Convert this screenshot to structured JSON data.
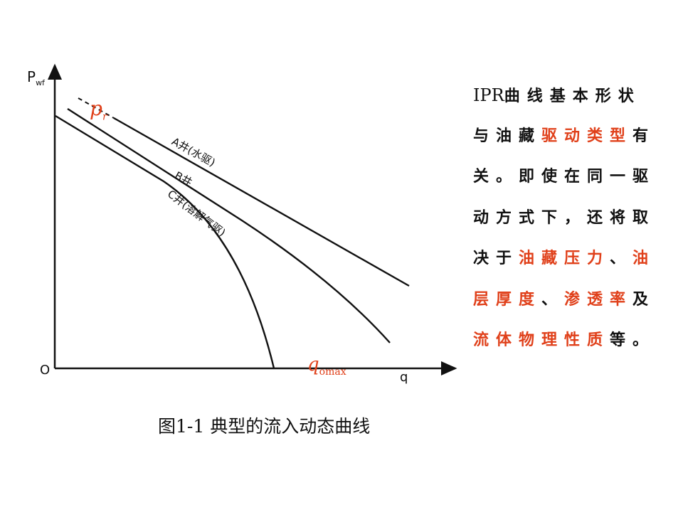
{
  "diagram": {
    "y_axis_label": "P",
    "y_axis_sub": "wf",
    "x_axis_label": "q",
    "origin_label": "O",
    "pr_label": "p",
    "pr_sub": "r",
    "qomax_label": "q",
    "qomax_sub": "omax",
    "curve_a_label": "A井(水驱)",
    "curve_b_label": "B井",
    "curve_c_label": "C井(溶解气驱)",
    "annotation_color": "#e0401a"
  },
  "caption": "图1-1  典型的流入动态曲线",
  "paragraph": {
    "highlight_color": "#e0401a",
    "lines": [
      [
        {
          "t": "IPR",
          "ipr": true
        },
        {
          "t": "曲线基本形状"
        }
      ],
      [
        {
          "t": "与油藏"
        },
        {
          "t": "驱动类型",
          "hl": true
        },
        {
          "t": "有"
        }
      ],
      [
        {
          "t": "关。即使在同一驱"
        }
      ],
      [
        {
          "t": "动方式下，还将取"
        }
      ],
      [
        {
          "t": "决于"
        },
        {
          "t": "油藏压力",
          "hl": true
        },
        {
          "t": "、"
        },
        {
          "t": "油",
          "hl": true
        }
      ],
      [
        {
          "t": "层厚度",
          "hl": true
        },
        {
          "t": "、"
        },
        {
          "t": "渗透率",
          "hl": true
        },
        {
          "t": "及"
        }
      ],
      [
        {
          "t": "流体物理性质",
          "hl": true
        },
        {
          "t": "等。"
        }
      ]
    ]
  }
}
